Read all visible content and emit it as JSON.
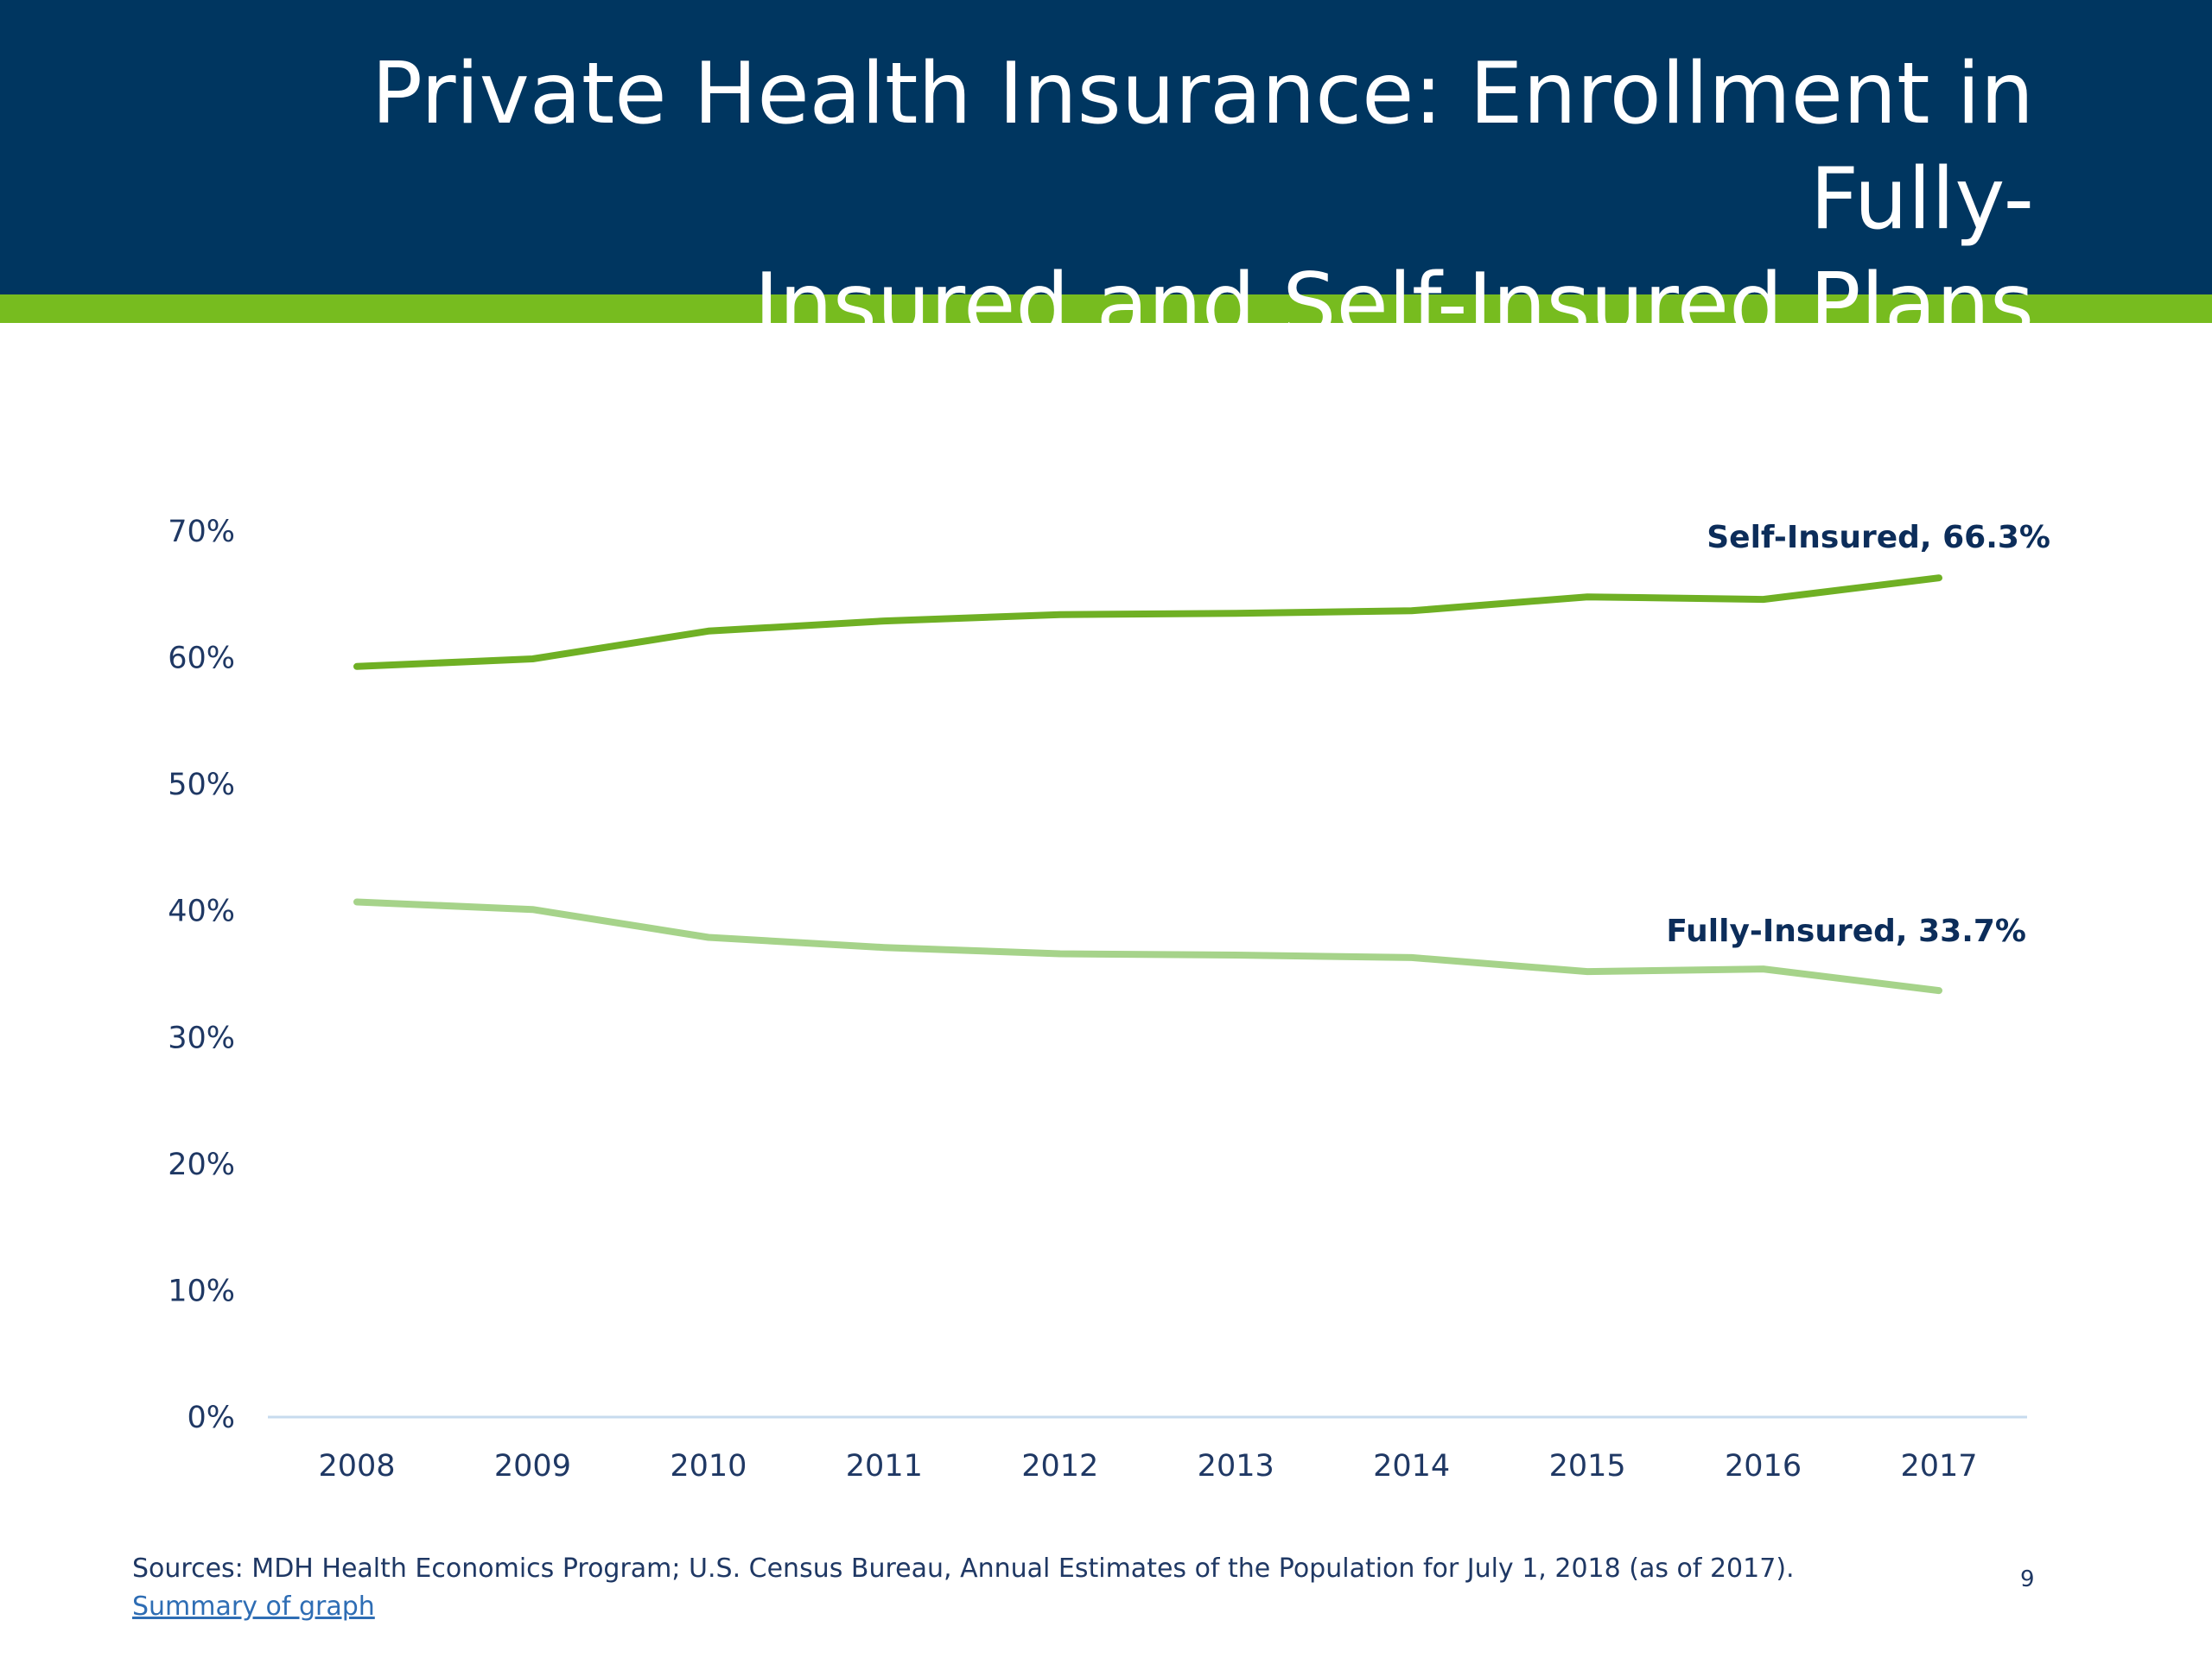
{
  "slide": {
    "title_line1": "Private Health Insurance: Enrollment in Fully-",
    "title_line2": "Insured and Self-Insured Plans",
    "sources": "Sources: MDH Health Economics Program; U.S. Census Bureau, Annual Estimates of the Population for July 1, 2018 (as of 2017).",
    "summary_link": "Summary of graph",
    "page_number": "9"
  },
  "colors": {
    "title_band": "#003660",
    "accent_band": "#77bc1f",
    "self_insured": "#6fb024",
    "fully_insured": "#a6d38a",
    "text": "#1f3864"
  },
  "chart_data": {
    "type": "line",
    "x": [
      "2008",
      "2009",
      "2010",
      "2011",
      "2012",
      "2013",
      "2014",
      "2015",
      "2016",
      "2017"
    ],
    "y_ticks": [
      "0%",
      "10%",
      "20%",
      "30%",
      "40%",
      "50%",
      "60%",
      "70%"
    ],
    "ylim": [
      0,
      70
    ],
    "grid": false,
    "legend": "none",
    "series": [
      {
        "name": "Self-Insured",
        "label": "Self-Insured, 66.3%",
        "color": "#6fb024",
        "values": [
          59.3,
          59.9,
          62.1,
          62.9,
          63.4,
          63.5,
          63.7,
          64.8,
          64.6,
          66.3
        ]
      },
      {
        "name": "Fully-Insured",
        "label": "Fully-Insured, 33.7%",
        "color": "#a6d38a",
        "values": [
          40.7,
          40.1,
          37.9,
          37.1,
          36.6,
          36.5,
          36.3,
          35.2,
          35.4,
          33.7
        ]
      }
    ]
  }
}
